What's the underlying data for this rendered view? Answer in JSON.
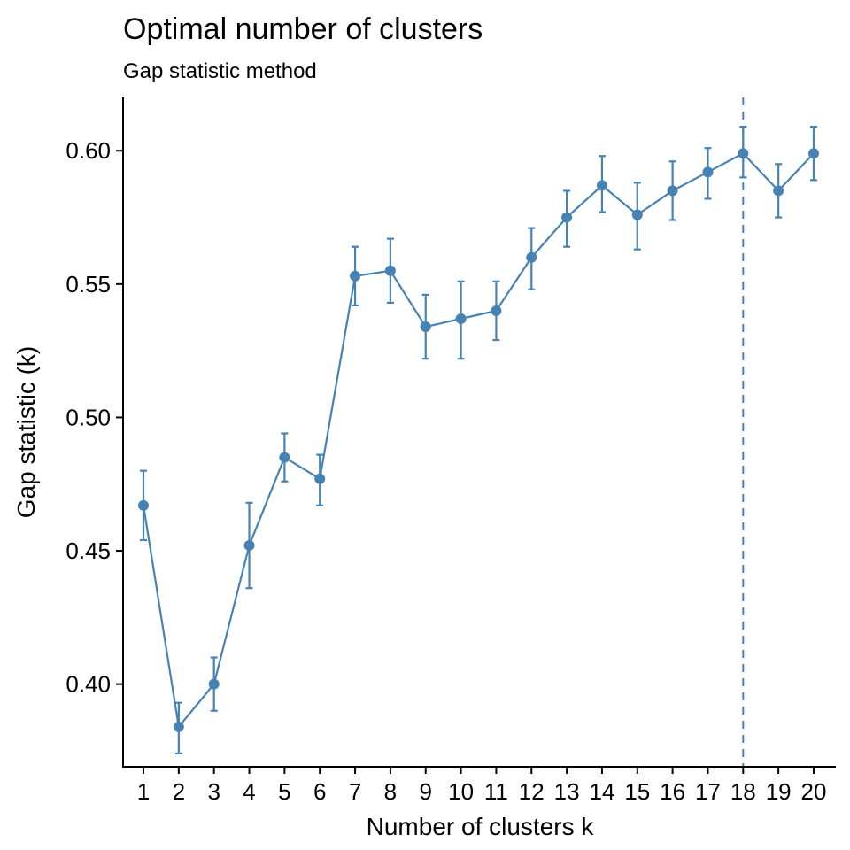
{
  "chart_data": {
    "type": "line",
    "title": "Optimal number of clusters",
    "subtitle": "Gap statistic method",
    "xlabel": "Number of clusters k",
    "ylabel": "Gap statistic (k)",
    "x": [
      1,
      2,
      3,
      4,
      5,
      6,
      7,
      8,
      9,
      10,
      11,
      12,
      13,
      14,
      15,
      16,
      17,
      18,
      19,
      20
    ],
    "x_tick_labels": [
      "1",
      "2",
      "3",
      "4",
      "5",
      "6",
      "7",
      "8",
      "9",
      "10",
      "11",
      "12",
      "13",
      "14",
      "15",
      "16",
      "17",
      "18",
      "19",
      "20"
    ],
    "y_ticks": [
      0.4,
      0.45,
      0.5,
      0.55,
      0.6
    ],
    "y_tick_labels": [
      "0.40",
      "0.45",
      "0.50",
      "0.55",
      "0.60"
    ],
    "ylim": [
      0.369,
      0.62
    ],
    "series": [
      {
        "values": [
          0.467,
          0.384,
          0.4,
          0.452,
          0.485,
          0.477,
          0.553,
          0.555,
          0.534,
          0.537,
          0.54,
          0.56,
          0.575,
          0.587,
          0.576,
          0.585,
          0.592,
          0.599,
          0.585,
          0.599
        ],
        "err_low": [
          0.454,
          0.374,
          0.39,
          0.436,
          0.476,
          0.467,
          0.542,
          0.543,
          0.522,
          0.522,
          0.529,
          0.548,
          0.564,
          0.577,
          0.563,
          0.574,
          0.582,
          0.59,
          0.575,
          0.589
        ],
        "err_high": [
          0.48,
          0.393,
          0.41,
          0.468,
          0.494,
          0.486,
          0.564,
          0.567,
          0.546,
          0.551,
          0.551,
          0.571,
          0.585,
          0.598,
          0.588,
          0.596,
          0.601,
          0.609,
          0.595,
          0.609
        ],
        "color": "#4682B4"
      }
    ],
    "optimal_k": 18,
    "vline_color": "#4682B4",
    "grid": false
  }
}
